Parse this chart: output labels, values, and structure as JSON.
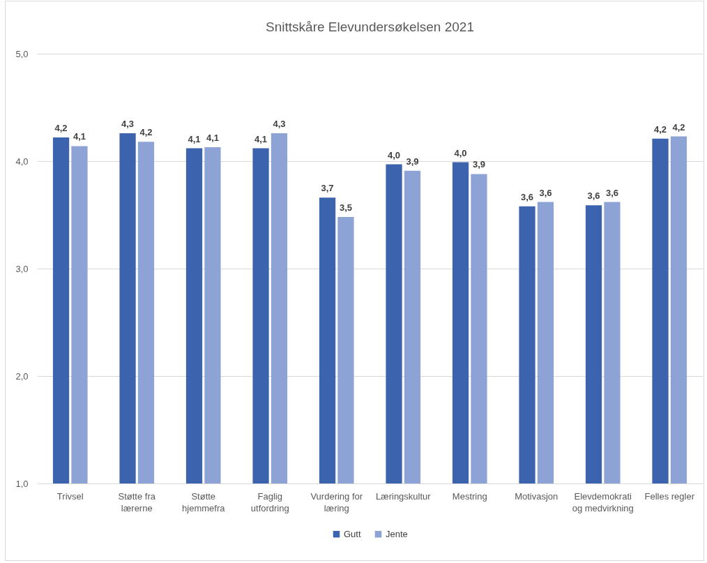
{
  "chart_data": {
    "type": "bar",
    "title": "Snittskåre Elevundersøkelsen 2021",
    "categories": [
      "Trivsel",
      "Støtte fra lærerne",
      "Støtte hjemmefra",
      "Faglig utfordring",
      "Vurdering for læring",
      "Læringskultur",
      "Mestring",
      "Motivasjon",
      "Elevdemokrati og medvirkning",
      "Felles regler"
    ],
    "series": [
      {
        "name": "Gutt",
        "color": "#3b63ae",
        "values": [
          4.22,
          4.26,
          4.12,
          4.12,
          3.66,
          3.97,
          3.99,
          3.58,
          3.59,
          4.21
        ],
        "value_labels": [
          "4,2",
          "4,3",
          "4,1",
          "4,1",
          "3,7",
          "4,0",
          "4,0",
          "3,6",
          "3,6",
          "4,2"
        ]
      },
      {
        "name": "Jente",
        "color": "#8ea3d5",
        "values": [
          4.14,
          4.18,
          4.13,
          4.26,
          3.48,
          3.91,
          3.88,
          3.62,
          3.62,
          4.23
        ],
        "value_labels": [
          "4,1",
          "4,2",
          "4,1",
          "4,3",
          "3,5",
          "3,9",
          "3,9",
          "3,6",
          "3,6",
          "4,2"
        ]
      }
    ],
    "ylim": [
      1,
      5
    ],
    "yticks": [
      {
        "value": 1,
        "label": "1,0"
      },
      {
        "value": 2,
        "label": "2,0"
      },
      {
        "value": 3,
        "label": "3,0"
      },
      {
        "value": 4,
        "label": "4,0"
      },
      {
        "value": 5,
        "label": "5,0"
      }
    ],
    "grid": "y",
    "legend": "bottom"
  }
}
